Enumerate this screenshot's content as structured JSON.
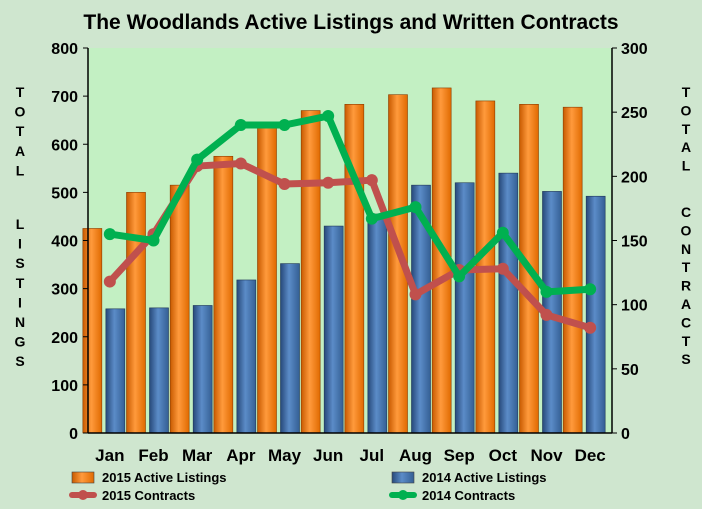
{
  "chart_data": {
    "type": "bar",
    "title": "The Woodlands Active Listings and Written Contracts",
    "categories": [
      "Jan",
      "Feb",
      "Mar",
      "Apr",
      "May",
      "Jun",
      "Jul",
      "Aug",
      "Sep",
      "Oct",
      "Nov",
      "Dec"
    ],
    "y_left": {
      "label": "TOTAL LISTINGS",
      "label_words": [
        "TOTAL",
        "LISTINGS"
      ],
      "range": [
        0,
        800
      ],
      "ticks": [
        0,
        100,
        200,
        300,
        400,
        500,
        600,
        700,
        800
      ]
    },
    "y_right": {
      "label": "TOTAL CONTRACTS",
      "label_words": [
        "TOTAL",
        "CONTRACTS"
      ],
      "range": [
        0,
        300
      ],
      "ticks": [
        0,
        50,
        100,
        150,
        200,
        250,
        300
      ]
    },
    "grid": false,
    "legend_position": "bottom",
    "bar_series": [
      {
        "name": "2015 Active Listings",
        "color": "#ff7a0e",
        "axis": "left",
        "values": [
          425,
          500,
          515,
          575,
          635,
          670,
          683,
          703,
          717,
          690,
          683,
          677
        ]
      },
      {
        "name": "2014 Active Listings",
        "color": "#3e6fa8",
        "axis": "left",
        "values": [
          258,
          260,
          265,
          318,
          352,
          430,
          455,
          515,
          520,
          540,
          502,
          492
        ]
      }
    ],
    "line_series": [
      {
        "name": "2015 Contracts",
        "color": "#c0504d",
        "axis": "right",
        "values": [
          118,
          155,
          208,
          210,
          194,
          195,
          197,
          108,
          127,
          128,
          92,
          82
        ]
      },
      {
        "name": "2014 Contracts",
        "color": "#00b050",
        "axis": "right",
        "values": [
          155,
          150,
          213,
          240,
          240,
          247,
          167,
          176,
          122,
          156,
          110,
          112
        ]
      }
    ]
  }
}
